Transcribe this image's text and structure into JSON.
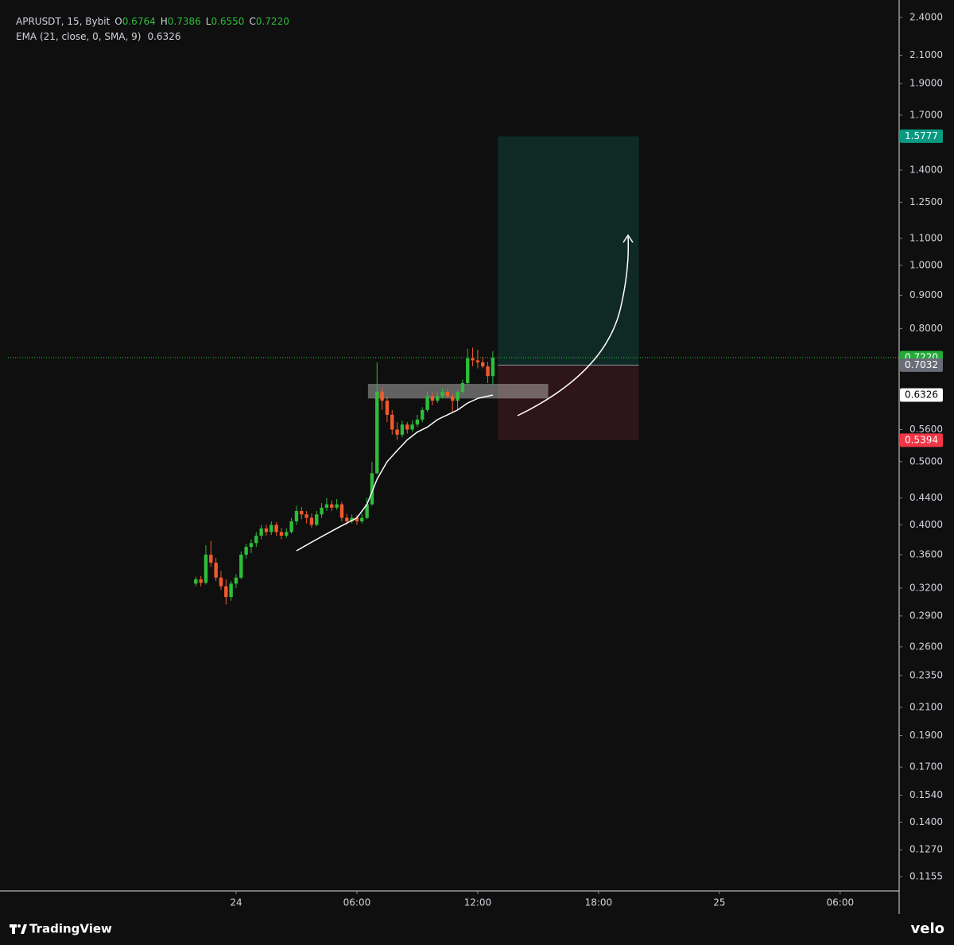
{
  "chart_data": {
    "type": "candlestick",
    "title": "APRUSDT, 15, Bybit",
    "legend": [
      {
        "key": "O",
        "value": "0.6764"
      },
      {
        "key": "H",
        "value": "0.7386"
      },
      {
        "key": "L",
        "value": "0.6550"
      },
      {
        "key": "C",
        "value": "0.7220"
      }
    ],
    "log_scale": true,
    "up_color": "#2ebd3a",
    "down_color": "#f25a2c",
    "x": [
      -2,
      -1.75,
      -1.5,
      -1.25,
      -1,
      -0.75,
      -0.5,
      -0.25,
      0,
      0.25,
      0.5,
      0.75,
      1,
      1.25,
      1.5,
      1.75,
      2,
      2.25,
      2.5,
      2.75,
      3,
      3.25,
      3.5,
      3.75,
      4,
      4.25,
      4.5,
      4.75,
      5,
      5.25,
      5.5,
      5.75,
      6,
      6.25,
      6.5,
      6.75,
      7,
      7.25,
      7.5,
      7.75,
      8,
      8.25,
      8.5,
      8.75,
      9,
      9.25,
      9.5,
      9.75,
      10,
      10.25,
      10.5,
      10.75,
      11,
      11.25,
      11.5,
      11.75,
      12,
      12.25,
      12.5,
      12.75
    ],
    "open": [
      0.325,
      0.33,
      0.326,
      0.36,
      0.35,
      0.332,
      0.322,
      0.31,
      0.325,
      0.332,
      0.36,
      0.37,
      0.375,
      0.385,
      0.395,
      0.39,
      0.4,
      0.39,
      0.385,
      0.39,
      0.405,
      0.42,
      0.415,
      0.41,
      0.4,
      0.415,
      0.425,
      0.43,
      0.425,
      0.43,
      0.41,
      0.405,
      0.41,
      0.405,
      0.41,
      0.43,
      0.48,
      0.64,
      0.62,
      0.59,
      0.56,
      0.55,
      0.57,
      0.56,
      0.57,
      0.58,
      0.6,
      0.63,
      0.62,
      0.63,
      0.64,
      0.63,
      0.62,
      0.64,
      0.66,
      0.72,
      0.715,
      0.71,
      0.7,
      0.6764
    ],
    "high": [
      0.333,
      0.334,
      0.372,
      0.378,
      0.356,
      0.34,
      0.33,
      0.328,
      0.336,
      0.364,
      0.374,
      0.38,
      0.39,
      0.4,
      0.4,
      0.405,
      0.404,
      0.396,
      0.395,
      0.41,
      0.428,
      0.426,
      0.42,
      0.416,
      0.42,
      0.432,
      0.44,
      0.436,
      0.438,
      0.434,
      0.416,
      0.415,
      0.414,
      0.416,
      0.44,
      0.5,
      0.71,
      0.65,
      0.63,
      0.6,
      0.575,
      0.578,
      0.575,
      0.578,
      0.59,
      0.606,
      0.64,
      0.638,
      0.64,
      0.648,
      0.646,
      0.636,
      0.645,
      0.668,
      0.745,
      0.748,
      0.742,
      0.725,
      0.712,
      0.7386
    ],
    "low": [
      0.322,
      0.322,
      0.324,
      0.345,
      0.328,
      0.318,
      0.302,
      0.306,
      0.32,
      0.33,
      0.355,
      0.362,
      0.37,
      0.38,
      0.385,
      0.386,
      0.385,
      0.38,
      0.382,
      0.388,
      0.4,
      0.408,
      0.402,
      0.396,
      0.398,
      0.41,
      0.42,
      0.42,
      0.422,
      0.405,
      0.4,
      0.402,
      0.4,
      0.402,
      0.408,
      0.428,
      0.478,
      0.6,
      0.575,
      0.55,
      0.54,
      0.545,
      0.552,
      0.556,
      0.565,
      0.575,
      0.596,
      0.61,
      0.615,
      0.625,
      0.625,
      0.595,
      0.6,
      0.635,
      0.655,
      0.7,
      0.695,
      0.695,
      0.66,
      0.655
    ],
    "close": [
      0.33,
      0.326,
      0.36,
      0.35,
      0.332,
      0.322,
      0.31,
      0.325,
      0.332,
      0.36,
      0.37,
      0.375,
      0.385,
      0.395,
      0.39,
      0.4,
      0.39,
      0.385,
      0.39,
      0.405,
      0.42,
      0.415,
      0.41,
      0.4,
      0.415,
      0.425,
      0.43,
      0.425,
      0.43,
      0.41,
      0.405,
      0.41,
      0.405,
      0.41,
      0.43,
      0.48,
      0.64,
      0.62,
      0.59,
      0.56,
      0.55,
      0.57,
      0.56,
      0.57,
      0.58,
      0.6,
      0.63,
      0.62,
      0.63,
      0.64,
      0.63,
      0.62,
      0.64,
      0.66,
      0.72,
      0.715,
      0.71,
      0.7,
      0.6764,
      0.722
    ],
    "ema": {
      "name": "EMA (21, close, 0, SMA, 9)",
      "color": "#ffffff",
      "x": [
        3,
        4,
        5,
        6,
        6.5,
        7,
        7.5,
        8,
        8.5,
        9,
        9.5,
        10,
        10.5,
        11,
        11.5,
        12,
        12.75
      ],
      "values": [
        0.365,
        0.38,
        0.395,
        0.41,
        0.43,
        0.47,
        0.5,
        0.52,
        0.54,
        0.555,
        0.565,
        0.58,
        0.59,
        0.6,
        0.615,
        0.625,
        0.6326
      ]
    },
    "zone": {
      "x": [
        6.55,
        15.5
      ],
      "y": [
        0.625,
        0.658
      ]
    },
    "position": {
      "x": [
        13,
        20
      ],
      "entry": 0.7032,
      "target": 1.5777,
      "stop": 0.5394
    },
    "last_line": 0.722,
    "price_badges": [
      {
        "value": 1.5777,
        "label": "1.5777",
        "color": "#089981"
      },
      {
        "value": 0.722,
        "label": "0.7220",
        "color": "#22ab37"
      },
      {
        "value": 0.7032,
        "label": "0.7032",
        "color": "#6a6d78"
      },
      {
        "value": 0.6326,
        "label": "0.6326",
        "color": "#ffffff"
      },
      {
        "value": 0.5394,
        "label": "0.5394",
        "color": "#f23645"
      }
    ],
    "xlim": [
      -11.33,
      32.89
    ],
    "ylim": [
      0.1101,
      2.482
    ],
    "xticks": [
      {
        "value": 0,
        "label": "24"
      },
      {
        "value": 6,
        "label": "06:00"
      },
      {
        "value": 12,
        "label": "12:00"
      },
      {
        "value": 18,
        "label": "18:00"
      },
      {
        "value": 24,
        "label": "25"
      },
      {
        "value": 30,
        "label": "06:00"
      }
    ],
    "yticks": [
      {
        "value": 2.4,
        "label": "2.4000"
      },
      {
        "value": 2.1,
        "label": "2.1000"
      },
      {
        "value": 1.9,
        "label": "1.9000"
      },
      {
        "value": 1.7,
        "label": "1.7000"
      },
      {
        "value": 1.4,
        "label": "1.4000"
      },
      {
        "value": 1.25,
        "label": "1.2500"
      },
      {
        "value": 1.1,
        "label": "1.1000"
      },
      {
        "value": 1.0,
        "label": "1.0000"
      },
      {
        "value": 0.9,
        "label": "0.9000"
      },
      {
        "value": 0.8,
        "label": "0.8000"
      },
      {
        "value": 0.56,
        "label": "0.5600"
      },
      {
        "value": 0.5,
        "label": "0.5000"
      },
      {
        "value": 0.44,
        "label": "0.4400"
      },
      {
        "value": 0.4,
        "label": "0.4000"
      },
      {
        "value": 0.36,
        "label": "0.3600"
      },
      {
        "value": 0.32,
        "label": "0.3200"
      },
      {
        "value": 0.29,
        "label": "0.2900"
      },
      {
        "value": 0.26,
        "label": "0.2600"
      },
      {
        "value": 0.235,
        "label": "0.2350"
      },
      {
        "value": 0.21,
        "label": "0.2100"
      },
      {
        "value": 0.19,
        "label": "0.1900"
      },
      {
        "value": 0.17,
        "label": "0.1700"
      },
      {
        "value": 0.154,
        "label": "0.1540"
      },
      {
        "value": 0.14,
        "label": "0.1400"
      },
      {
        "value": 0.127,
        "label": "0.1270"
      },
      {
        "value": 0.1155,
        "label": "0.1155"
      }
    ]
  },
  "footer": {
    "brand": "TradingView",
    "source": "velo"
  }
}
